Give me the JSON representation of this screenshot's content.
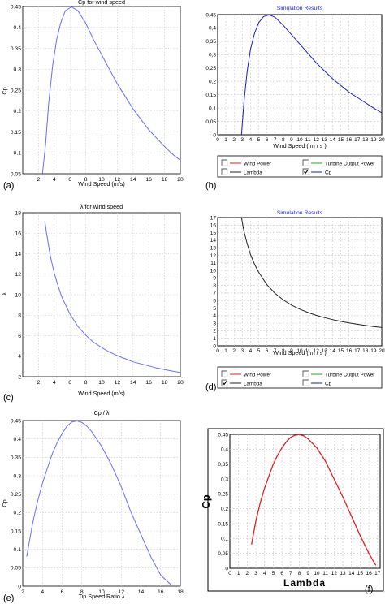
{
  "figure": {
    "panel_labels": [
      "(a)",
      "(b)",
      "(c)",
      "(d)",
      "(e)",
      "(f)"
    ]
  },
  "colors": {
    "matlab_line": "#6b6bff",
    "sim_blue": "#1a1acc",
    "sim_black": "#222222",
    "sim_red": "#dd2222",
    "sim_green": "#22aa22",
    "grid": "#c8c8c8",
    "title_blue": "#1a1aff"
  },
  "chart_data": [
    {
      "id": "a",
      "type": "line",
      "style": "matlab",
      "title": "Cp for wind speed",
      "xlabel": "Wind Speed (m/s)",
      "ylabel": "Cp",
      "xlim": [
        0,
        20
      ],
      "ylim": [
        0.05,
        0.45
      ],
      "xticks": [
        2,
        4,
        6,
        8,
        10,
        12,
        14,
        16,
        18,
        20
      ],
      "yticks": [
        0.05,
        0.1,
        0.15,
        0.2,
        0.25,
        0.3,
        0.35,
        0.4,
        0.45
      ],
      "ytick_labels": [
        "0.05",
        "0.1",
        "0.15",
        "0.2",
        "0.25",
        "0.3",
        "0.35",
        "0.4",
        "0.45"
      ],
      "series": [
        {
          "color": "#6b6bff",
          "points": [
            [
              2.5,
              0.05
            ],
            [
              2.9,
              0.12
            ],
            [
              3.3,
              0.22
            ],
            [
              3.8,
              0.31
            ],
            [
              4.3,
              0.37
            ],
            [
              4.8,
              0.41
            ],
            [
              5.4,
              0.44
            ],
            [
              6.2,
              0.449
            ],
            [
              7,
              0.44
            ],
            [
              8,
              0.41
            ],
            [
              9,
              0.37
            ],
            [
              10,
              0.335
            ],
            [
              11,
              0.3
            ],
            [
              12,
              0.265
            ],
            [
              13,
              0.235
            ],
            [
              14,
              0.205
            ],
            [
              15,
              0.18
            ],
            [
              16,
              0.155
            ],
            [
              17,
              0.135
            ],
            [
              18,
              0.115
            ],
            [
              19,
              0.097
            ],
            [
              20,
              0.082
            ]
          ]
        }
      ]
    },
    {
      "id": "b",
      "type": "line",
      "style": "simulink",
      "title": "Simulation Results",
      "xlabel": "Wind Speed ( m / s )",
      "ylabel": "",
      "xlim": [
        0,
        20
      ],
      "ylim": [
        0,
        0.45
      ],
      "xticks": [
        0,
        1,
        2,
        3,
        4,
        5,
        6,
        7,
        8,
        9,
        10,
        11,
        12,
        13,
        14,
        15,
        16,
        17,
        18,
        19,
        20
      ],
      "yticks": [
        0,
        0.05,
        0.1,
        0.15,
        0.2,
        0.25,
        0.3,
        0.35,
        0.4,
        0.45
      ],
      "ytick_labels": [
        "0",
        "0,05",
        "0,1",
        "0,15",
        "0,2",
        "0,25",
        "0,3",
        "0,35",
        "0,4",
        "0,45"
      ],
      "legend": [
        {
          "label": "Wind Power",
          "color": "#dd2222",
          "checked": false
        },
        {
          "label": "Turbine Output Power",
          "color": "#22aa22",
          "checked": false
        },
        {
          "label": "Lambda",
          "color": "#222222",
          "checked": false
        },
        {
          "label": "Cp",
          "color": "#1a1acc",
          "checked": true
        }
      ],
      "series": [
        {
          "name": "Cp",
          "color": "#1a1acc",
          "points": [
            [
              2.9,
              0
            ],
            [
              3.2,
              0.12
            ],
            [
              3.6,
              0.24
            ],
            [
              4,
              0.32
            ],
            [
              4.5,
              0.38
            ],
            [
              5,
              0.42
            ],
            [
              5.6,
              0.443
            ],
            [
              6.3,
              0.449
            ],
            [
              7,
              0.44
            ],
            [
              8,
              0.41
            ],
            [
              9,
              0.375
            ],
            [
              10,
              0.34
            ],
            [
              11,
              0.305
            ],
            [
              12,
              0.27
            ],
            [
              13,
              0.24
            ],
            [
              14,
              0.21
            ],
            [
              15,
              0.185
            ],
            [
              16,
              0.16
            ],
            [
              17,
              0.14
            ],
            [
              18,
              0.12
            ],
            [
              19,
              0.1
            ],
            [
              20,
              0.082
            ]
          ]
        }
      ]
    },
    {
      "id": "c",
      "type": "line",
      "style": "matlab",
      "title": "λ for wind speed",
      "xlabel": "Wind Speed (m/s)",
      "ylabel": "λ",
      "xlim": [
        0,
        20
      ],
      "ylim": [
        2,
        18
      ],
      "xticks": [
        2,
        4,
        6,
        8,
        10,
        12,
        14,
        16,
        18,
        20
      ],
      "yticks": [
        2,
        4,
        6,
        8,
        10,
        12,
        14,
        16,
        18
      ],
      "ytick_labels": [
        "2",
        "4",
        "6",
        "8",
        "10",
        "12",
        "14",
        "16",
        "18"
      ],
      "series": [
        {
          "color": "#6b6bff",
          "points": [
            [
              2.8,
              17.2
            ],
            [
              3,
              16.1
            ],
            [
              3.5,
              13.8
            ],
            [
              4,
              12.1
            ],
            [
              4.5,
              10.8
            ],
            [
              5,
              9.7
            ],
            [
              6,
              8.1
            ],
            [
              7,
              6.9
            ],
            [
              8,
              6.05
            ],
            [
              9,
              5.35
            ],
            [
              10,
              4.85
            ],
            [
              11,
              4.4
            ],
            [
              12,
              4.05
            ],
            [
              13,
              3.75
            ],
            [
              14,
              3.45
            ],
            [
              15,
              3.25
            ],
            [
              16,
              3.05
            ],
            [
              17,
              2.85
            ],
            [
              18,
              2.7
            ],
            [
              19,
              2.55
            ],
            [
              20,
              2.42
            ]
          ]
        }
      ]
    },
    {
      "id": "d",
      "type": "line",
      "style": "simulink",
      "title": "Simulation Results",
      "xlabel": "Wind Speed ( m / s )",
      "ylabel": "",
      "xlim": [
        0,
        20
      ],
      "ylim": [
        0,
        17
      ],
      "xticks": [
        0,
        1,
        2,
        3,
        4,
        5,
        6,
        7,
        8,
        9,
        10,
        11,
        12,
        13,
        14,
        15,
        16,
        17,
        18,
        19,
        20
      ],
      "yticks": [
        0,
        1,
        2,
        3,
        4,
        5,
        6,
        7,
        8,
        9,
        10,
        11,
        12,
        13,
        14,
        15,
        16,
        17
      ],
      "ytick_labels": [
        "0",
        "1",
        "2",
        "3",
        "4",
        "5",
        "6",
        "7",
        "8",
        "9",
        "10",
        "11",
        "12",
        "13",
        "14",
        "15",
        "16",
        "17"
      ],
      "legend": [
        {
          "label": "Wind Power",
          "color": "#dd2222",
          "checked": false
        },
        {
          "label": "Turbine Output Power",
          "color": "#22aa22",
          "checked": false
        },
        {
          "label": "Lambda",
          "color": "#222222",
          "checked": true
        },
        {
          "label": "Cp",
          "color": "#1a1acc",
          "checked": false
        }
      ],
      "series": [
        {
          "name": "Lambda",
          "color": "#222222",
          "points": [
            [
              2.9,
              17
            ],
            [
              3.2,
              15.2
            ],
            [
              3.6,
              13.5
            ],
            [
              4,
              12.1
            ],
            [
              4.5,
              10.8
            ],
            [
              5,
              9.75
            ],
            [
              6,
              8.1
            ],
            [
              7,
              6.95
            ],
            [
              8,
              6.08
            ],
            [
              9,
              5.4
            ],
            [
              10,
              4.86
            ],
            [
              11,
              4.42
            ],
            [
              12,
              4.05
            ],
            [
              13,
              3.74
            ],
            [
              14,
              3.47
            ],
            [
              15,
              3.24
            ],
            [
              16,
              3.04
            ],
            [
              17,
              2.86
            ],
            [
              18,
              2.7
            ],
            [
              19,
              2.56
            ],
            [
              20,
              2.43
            ]
          ]
        }
      ]
    },
    {
      "id": "e",
      "type": "line",
      "style": "matlab",
      "title": "Cp / λ",
      "xlabel": "Tip Speed Ratio λ",
      "ylabel": "Cp",
      "xlim": [
        2,
        18
      ],
      "ylim": [
        0,
        0.45
      ],
      "xticks": [
        2,
        4,
        6,
        8,
        10,
        12,
        14,
        16,
        18
      ],
      "yticks": [
        0,
        0.05,
        0.1,
        0.15,
        0.2,
        0.25,
        0.3,
        0.35,
        0.4,
        0.45
      ],
      "ytick_labels": [
        "0",
        "0.05",
        "0.1",
        "0.15",
        "0.2",
        "0.25",
        "0.3",
        "0.35",
        "0.4",
        "0.45"
      ],
      "series": [
        {
          "color": "#6b6bff",
          "points": [
            [
              2.4,
              0.08
            ],
            [
              3,
              0.17
            ],
            [
              3.5,
              0.23
            ],
            [
              4,
              0.28
            ],
            [
              4.5,
              0.32
            ],
            [
              5,
              0.36
            ],
            [
              5.5,
              0.39
            ],
            [
              6,
              0.415
            ],
            [
              6.5,
              0.435
            ],
            [
              7,
              0.446
            ],
            [
              7.5,
              0.449
            ],
            [
              8,
              0.445
            ],
            [
              8.5,
              0.435
            ],
            [
              9,
              0.42
            ],
            [
              10,
              0.38
            ],
            [
              11,
              0.33
            ],
            [
              12,
              0.27
            ],
            [
              13,
              0.2
            ],
            [
              14,
              0.14
            ],
            [
              15,
              0.08
            ],
            [
              16,
              0.03
            ],
            [
              17,
              0.005
            ]
          ]
        }
      ]
    },
    {
      "id": "f",
      "type": "line",
      "style": "simulink-bold",
      "title": "",
      "xlabel": "Lambda",
      "ylabel": "Cp",
      "xlim": [
        0,
        17.3
      ],
      "ylim": [
        0,
        0.45
      ],
      "xticks": [
        0,
        1,
        2,
        3,
        4,
        5,
        6,
        7,
        8,
        9,
        10,
        11,
        12,
        13,
        14,
        15,
        16,
        17
      ],
      "yticks": [
        0,
        0.05,
        0.1,
        0.15,
        0.2,
        0.25,
        0.3,
        0.35,
        0.4,
        0.45
      ],
      "ytick_labels": [
        "0",
        "0,05",
        "0,1",
        "0,15",
        "0,2",
        "0,25",
        "0,3",
        "0,35",
        "0,4",
        "0,45"
      ],
      "series": [
        {
          "color": "#dd2222",
          "points": [
            [
              2.5,
              0.08
            ],
            [
              3,
              0.16
            ],
            [
              3.5,
              0.22
            ],
            [
              4,
              0.27
            ],
            [
              4.5,
              0.31
            ],
            [
              5,
              0.35
            ],
            [
              5.5,
              0.38
            ],
            [
              6,
              0.405
            ],
            [
              6.5,
              0.425
            ],
            [
              7,
              0.44
            ],
            [
              7.5,
              0.447
            ],
            [
              8,
              0.449
            ],
            [
              8.5,
              0.445
            ],
            [
              9,
              0.435
            ],
            [
              10,
              0.405
            ],
            [
              11,
              0.36
            ],
            [
              12,
              0.3
            ],
            [
              13,
              0.24
            ],
            [
              14,
              0.175
            ],
            [
              15,
              0.11
            ],
            [
              16,
              0.05
            ],
            [
              16.8,
              0.01
            ]
          ]
        }
      ]
    }
  ]
}
